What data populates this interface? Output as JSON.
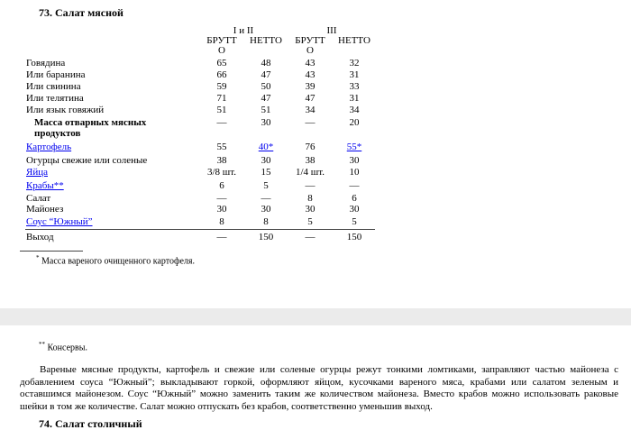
{
  "title": "73. Салат мясной",
  "group_headers": [
    "I и II",
    "III"
  ],
  "col_headers": [
    "БРУТТ\nО",
    "НЕТТО",
    "БРУТТ\nО",
    "НЕТТО"
  ],
  "rows": [
    {
      "label": "Говядина",
      "values": [
        "65",
        "48",
        "43",
        "32"
      ]
    },
    {
      "label": "Или баранина",
      "values": [
        "66",
        "47",
        "43",
        "31"
      ]
    },
    {
      "label": "Или свинина",
      "values": [
        "59",
        "50",
        "39",
        "33"
      ]
    },
    {
      "label": "Или телятина",
      "values": [
        "71",
        "47",
        "47",
        "31"
      ]
    },
    {
      "label": "Или язык говяжий",
      "values": [
        "51",
        "51",
        "34",
        "34"
      ]
    },
    {
      "label": "Масса отварных мясных продуктов",
      "bold": true,
      "values": [
        "—",
        "30",
        "—",
        "20"
      ]
    },
    {
      "label": "Картофель",
      "link": true,
      "values": [
        "55",
        "40*",
        "76",
        "55*"
      ],
      "links": [
        false,
        true,
        false,
        true
      ]
    },
    {
      "label": "Огурцы свежие или соленые",
      "values": [
        "38",
        "30",
        "38",
        "30"
      ]
    },
    {
      "label": "Яйца",
      "link": true,
      "values": [
        "3/8 шт.",
        "15",
        "1/4 шт.",
        "10"
      ]
    },
    {
      "label": "Крабы**",
      "link": true,
      "values": [
        "6",
        "5",
        "—",
        "—"
      ]
    },
    {
      "label": "Салат",
      "values": [
        "—",
        "—",
        "8",
        "6"
      ]
    },
    {
      "label": "Майонез",
      "values": [
        "30",
        "30",
        "30",
        "30"
      ]
    },
    {
      "label": "Соус “Южный”",
      "link": true,
      "values": [
        "8",
        "8",
        "5",
        "5"
      ]
    },
    {
      "label": "Выход",
      "values": [
        "—",
        "150",
        "—",
        "150"
      ]
    }
  ],
  "footnote1": {
    "mark": "*",
    "text": "Масса вареного очищенного картофеля."
  },
  "footnote2": {
    "mark": "**",
    "text": "Консервы."
  },
  "paragraph": "Вареные мясные продукты, картофель и свежие или соленые огурцы режут тонкими ломтиками, заправляют частью майонеза с добавлением соуса “Южный”; выкладывают горкой, оформляют яйцом, кусочками вареного мяса, крабами или салатом зеленым и оставшимся майонезом. Соус “Южный” можно заменить таким же количеством майонеза. Вместо крабов можно использовать раковые шейки в том же количестве. Салат можно отпускать без крабов, соответственно уменьшив выход.",
  "next_title": "74. Салат столичный"
}
